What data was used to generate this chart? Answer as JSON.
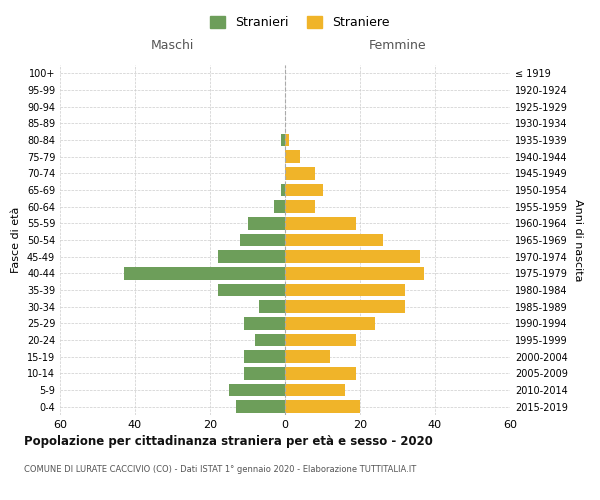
{
  "age_groups": [
    "0-4",
    "5-9",
    "10-14",
    "15-19",
    "20-24",
    "25-29",
    "30-34",
    "35-39",
    "40-44",
    "45-49",
    "50-54",
    "55-59",
    "60-64",
    "65-69",
    "70-74",
    "75-79",
    "80-84",
    "85-89",
    "90-94",
    "95-99",
    "100+"
  ],
  "birth_years": [
    "2015-2019",
    "2010-2014",
    "2005-2009",
    "2000-2004",
    "1995-1999",
    "1990-1994",
    "1985-1989",
    "1980-1984",
    "1975-1979",
    "1970-1974",
    "1965-1969",
    "1960-1964",
    "1955-1959",
    "1950-1954",
    "1945-1949",
    "1940-1944",
    "1935-1939",
    "1930-1934",
    "1925-1929",
    "1920-1924",
    "≤ 1919"
  ],
  "maschi": [
    13,
    15,
    11,
    11,
    8,
    11,
    7,
    18,
    43,
    18,
    12,
    10,
    3,
    1,
    0,
    0,
    1,
    0,
    0,
    0,
    0
  ],
  "femmine": [
    20,
    16,
    19,
    12,
    19,
    24,
    32,
    32,
    37,
    36,
    26,
    19,
    8,
    10,
    8,
    4,
    1,
    0,
    0,
    0,
    0
  ],
  "color_maschi": "#6d9e5a",
  "color_femmine": "#f0b429",
  "xlim": 60,
  "title": "Popolazione per cittadinanza straniera per età e sesso - 2020",
  "subtitle": "COMUNE DI LURATE CACCIVIO (CO) - Dati ISTAT 1° gennaio 2020 - Elaborazione TUTTITALIA.IT",
  "ylabel_left": "Fasce di età",
  "ylabel_right": "Anni di nascita",
  "legend_stranieri": "Stranieri",
  "legend_straniere": "Straniere",
  "header_maschi": "Maschi",
  "header_femmine": "Femmine",
  "background_color": "#ffffff",
  "grid_color": "#cccccc"
}
